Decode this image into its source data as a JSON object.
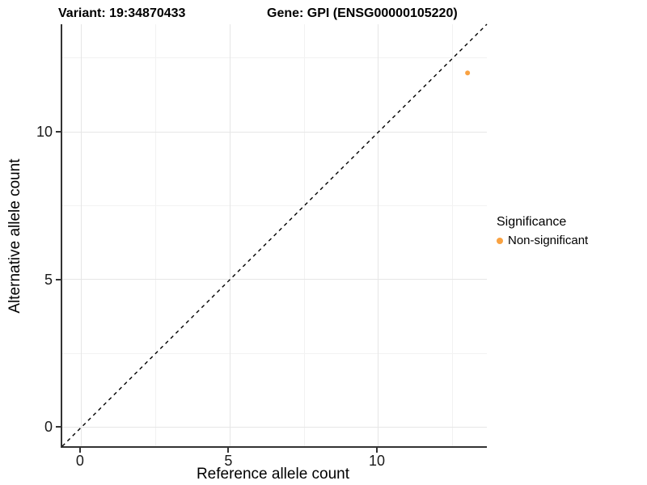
{
  "chart_data": {
    "type": "scatter",
    "title_left": "Variant: 19:34870433",
    "title_right": "Gene: GPI (ENSG00000105220)",
    "xlabel": "Reference allele count",
    "ylabel": "Alternative allele count",
    "xlim": [
      -0.65,
      13.65
    ],
    "ylim": [
      -0.65,
      13.65
    ],
    "x_major_ticks": [
      0,
      5,
      10
    ],
    "y_major_ticks": [
      0,
      5,
      10
    ],
    "x_minor_gridlines": [
      2.5,
      7.5,
      12.5
    ],
    "y_minor_gridlines": [
      2.5,
      7.5,
      12.5
    ],
    "grid": "major and minor gridlines, light gray on white background",
    "identity_line": {
      "equation": "y = x",
      "style": "dashed",
      "color": "#000000"
    },
    "series": [
      {
        "name": "Non-significant",
        "color": "#F9A242",
        "points": [
          {
            "x": 13,
            "y": 12
          }
        ]
      }
    ],
    "legend": {
      "title": "Significance",
      "position": "right",
      "items": [
        {
          "label": "Non-significant",
          "color": "#F9A242"
        }
      ]
    }
  },
  "colors": {
    "background": "#FFFFFF",
    "axis_line": "#333333",
    "grid_major": "#E6E6E6",
    "grid_minor": "#F2F2F2",
    "point": "#F9A242",
    "text": "#000000"
  }
}
